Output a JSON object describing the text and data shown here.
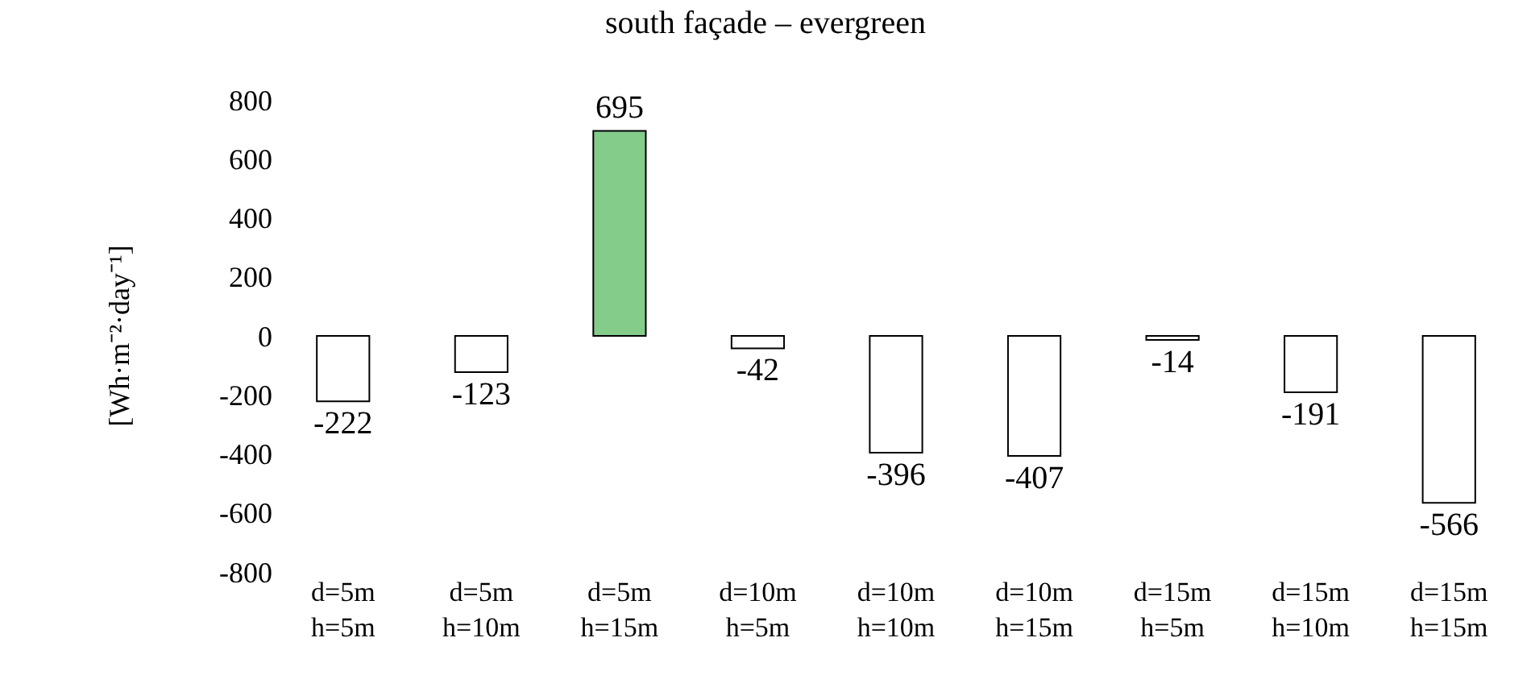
{
  "chart_data": {
    "type": "bar",
    "title": "south façade – evergreen",
    "ylabel": "[Wh·m⁻²·day⁻¹]",
    "categories": [
      "d=5m\nh=5m",
      "d=5m\nh=10m",
      "d=5m\nh=15m",
      "d=10m\nh=5m",
      "d=10m\nh=10m",
      "d=10m\nh=15m",
      "d=15m\nh=5m",
      "d=15m\nh=10m",
      "d=15m\nh=15m"
    ],
    "values": [
      -222,
      -123,
      695,
      -42,
      -396,
      -407,
      -14,
      -191,
      -566
    ],
    "colors": [
      "#ffffff",
      "#ffffff",
      "#84cc8a",
      "#ffffff",
      "#ffffff",
      "#ffffff",
      "#ffffff",
      "#ffffff",
      "#ffffff"
    ],
    "ylim": [
      -800,
      800
    ],
    "yticks": [
      -800,
      -600,
      -400,
      -200,
      0,
      200,
      400,
      600,
      800
    ],
    "data_labels": true
  }
}
